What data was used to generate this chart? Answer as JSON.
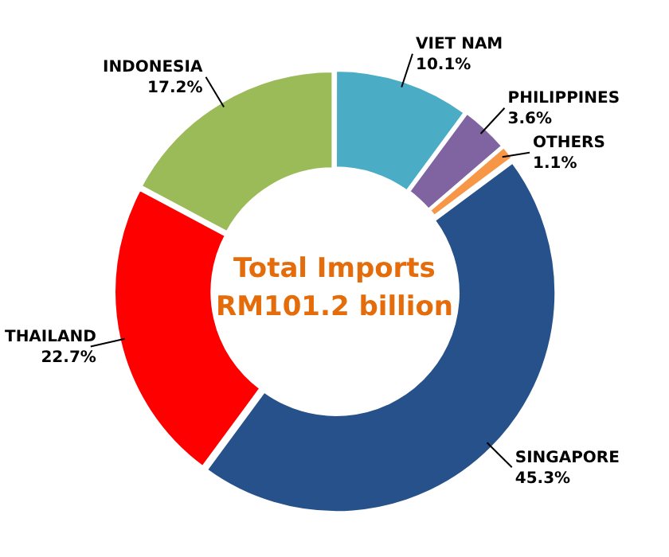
{
  "chart_data": {
    "type": "donut",
    "categories": [
      "VIET NAM",
      "PHILIPPINES",
      "OTHERS",
      "SINGAPORE",
      "THAILAND",
      "INDONESIA"
    ],
    "values": [
      10.1,
      3.6,
      1.1,
      45.3,
      22.7,
      17.2
    ],
    "value_labels": [
      "10.1%",
      "3.6%",
      "1.1%",
      "45.3%",
      "22.7%",
      "17.2%"
    ],
    "colors": [
      "#4bacc6",
      "#8064a2",
      "#f79646",
      "#27518a",
      "#ff0000",
      "#9bbb59"
    ],
    "annotations": [
      "Total Imports RM101.2 billion"
    ],
    "legend": false
  }
}
